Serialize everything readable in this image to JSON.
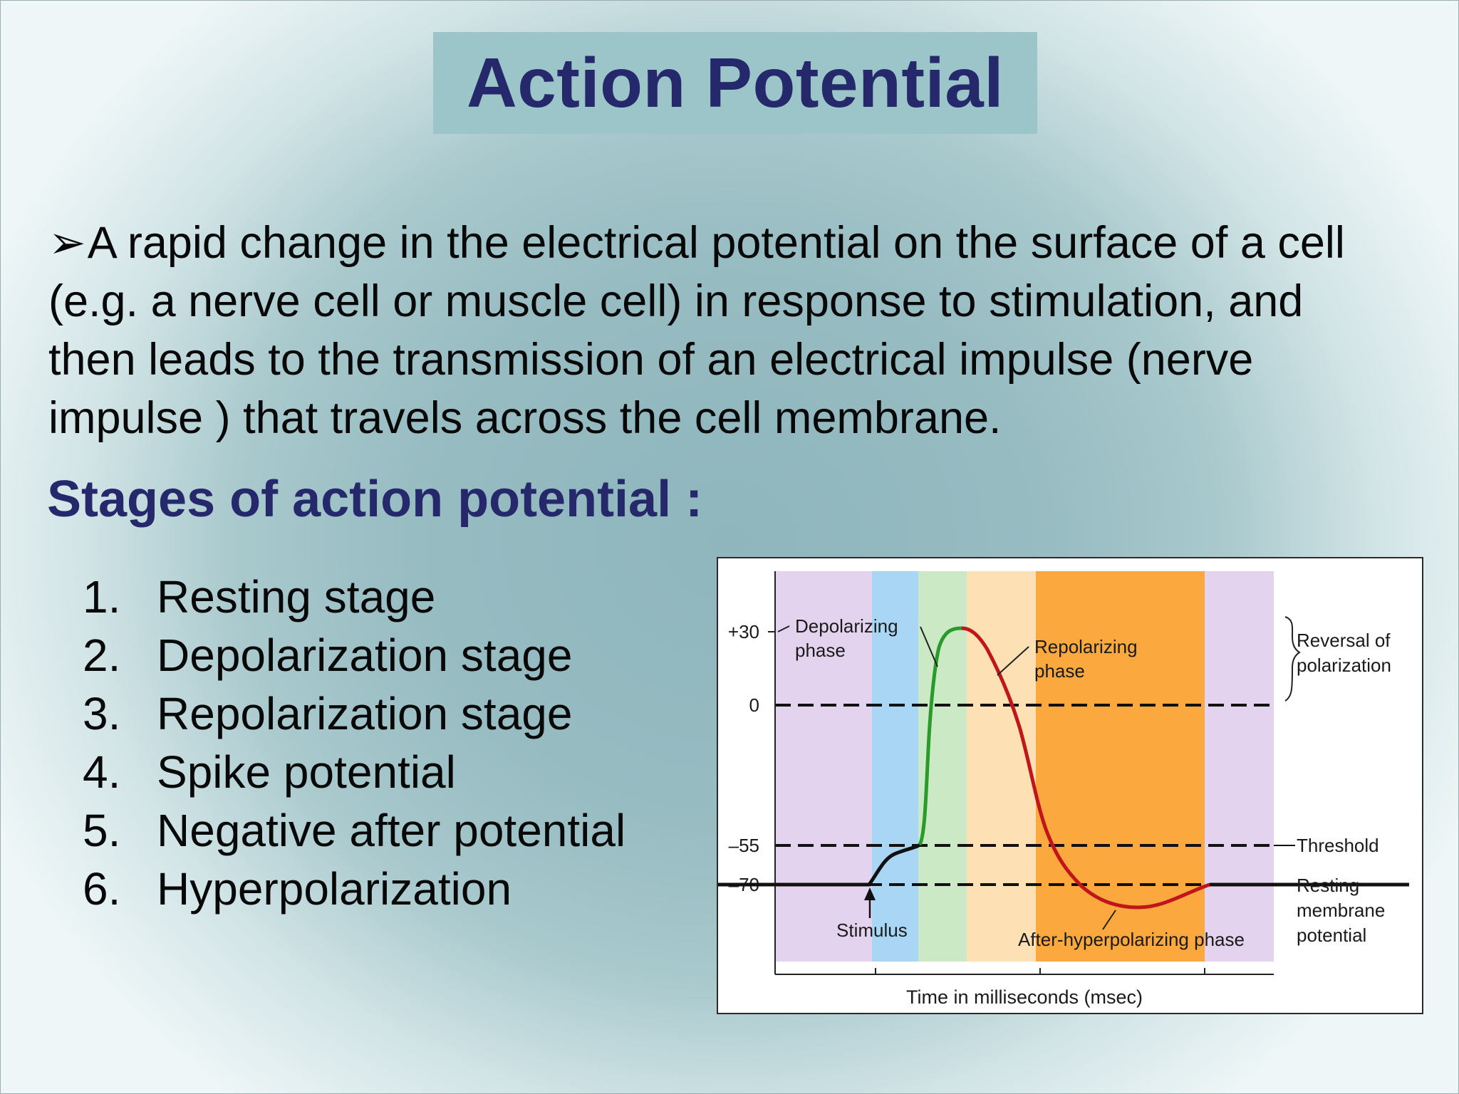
{
  "slide": {
    "title": "Action Potential",
    "definition": {
      "bullet": "➢",
      "lines": [
        "A rapid change in the electrical potential on the surface of a cell",
        "(e.g. a nerve cell or muscle cell) in response to stimulation, and",
        "then leads to the transmission of an electrical impulse (nerve",
        "impulse ) that travels across the cell membrane."
      ]
    },
    "stages_heading": "Stages of action potential :",
    "stages": [
      {
        "num": "1.",
        "label": "Resting stage"
      },
      {
        "num": "2.",
        "label": "Depolarization stage"
      },
      {
        "num": "3.",
        "label": "Repolarization stage"
      },
      {
        "num": "4.",
        "label": "Spike potential"
      },
      {
        "num": "5.",
        "label": "Negative after potential"
      },
      {
        "num": "6.",
        "label": "Hyperpolarization"
      }
    ]
  },
  "figure": {
    "y_ticks": [
      "+30",
      "0",
      "–55",
      "–70"
    ],
    "xlabel": "Time in milliseconds (msec)",
    "labels": {
      "depolarizing": [
        "Depolarizing",
        "phase"
      ],
      "repolarizing": [
        "Repolarizing",
        "phase"
      ],
      "reversal": [
        "Reversal of",
        "polarization"
      ],
      "threshold": "Threshold",
      "resting": [
        "Resting",
        "membrane",
        "potential"
      ],
      "stimulus": "Stimulus",
      "after_hyper": "After-hyperpolarizing phase"
    },
    "colors": {
      "violet": "#e4d3ee",
      "blue": "#a9d6f4",
      "green": "#cbe9c4",
      "peach": "#fde0b4",
      "orange": "#fba83e",
      "curve_depolarizing": "#2a9a2a",
      "curve_repolarizing": "#c0151b"
    }
  }
}
